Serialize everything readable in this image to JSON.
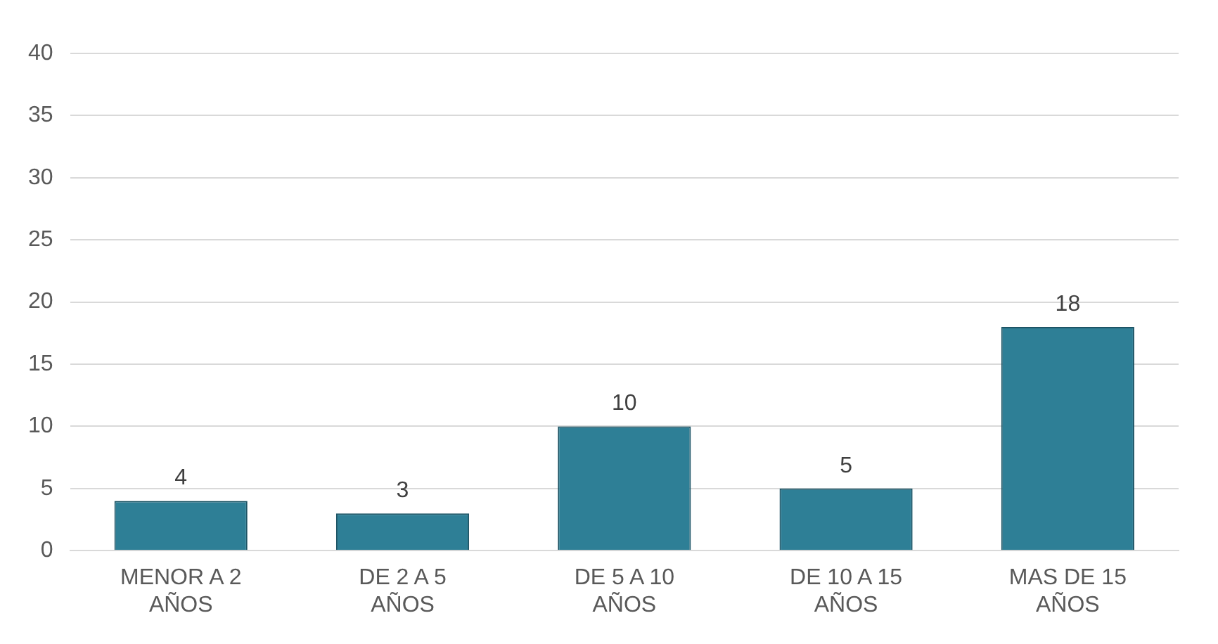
{
  "chart_data": {
    "type": "bar",
    "categories": [
      "MENOR A 2 AÑOS",
      "DE 2 A 5 AÑOS",
      "DE 5 A 10 AÑOS",
      "DE 10 A 15 AÑOS",
      "MAS DE 15 AÑOS"
    ],
    "values": [
      4,
      3,
      10,
      5,
      18
    ],
    "color": "#2e7f96",
    "ylim": [
      0,
      40
    ],
    "yticks": [
      0,
      5,
      10,
      15,
      20,
      25,
      30,
      35,
      40
    ],
    "grid": "y",
    "data_labels": true
  }
}
